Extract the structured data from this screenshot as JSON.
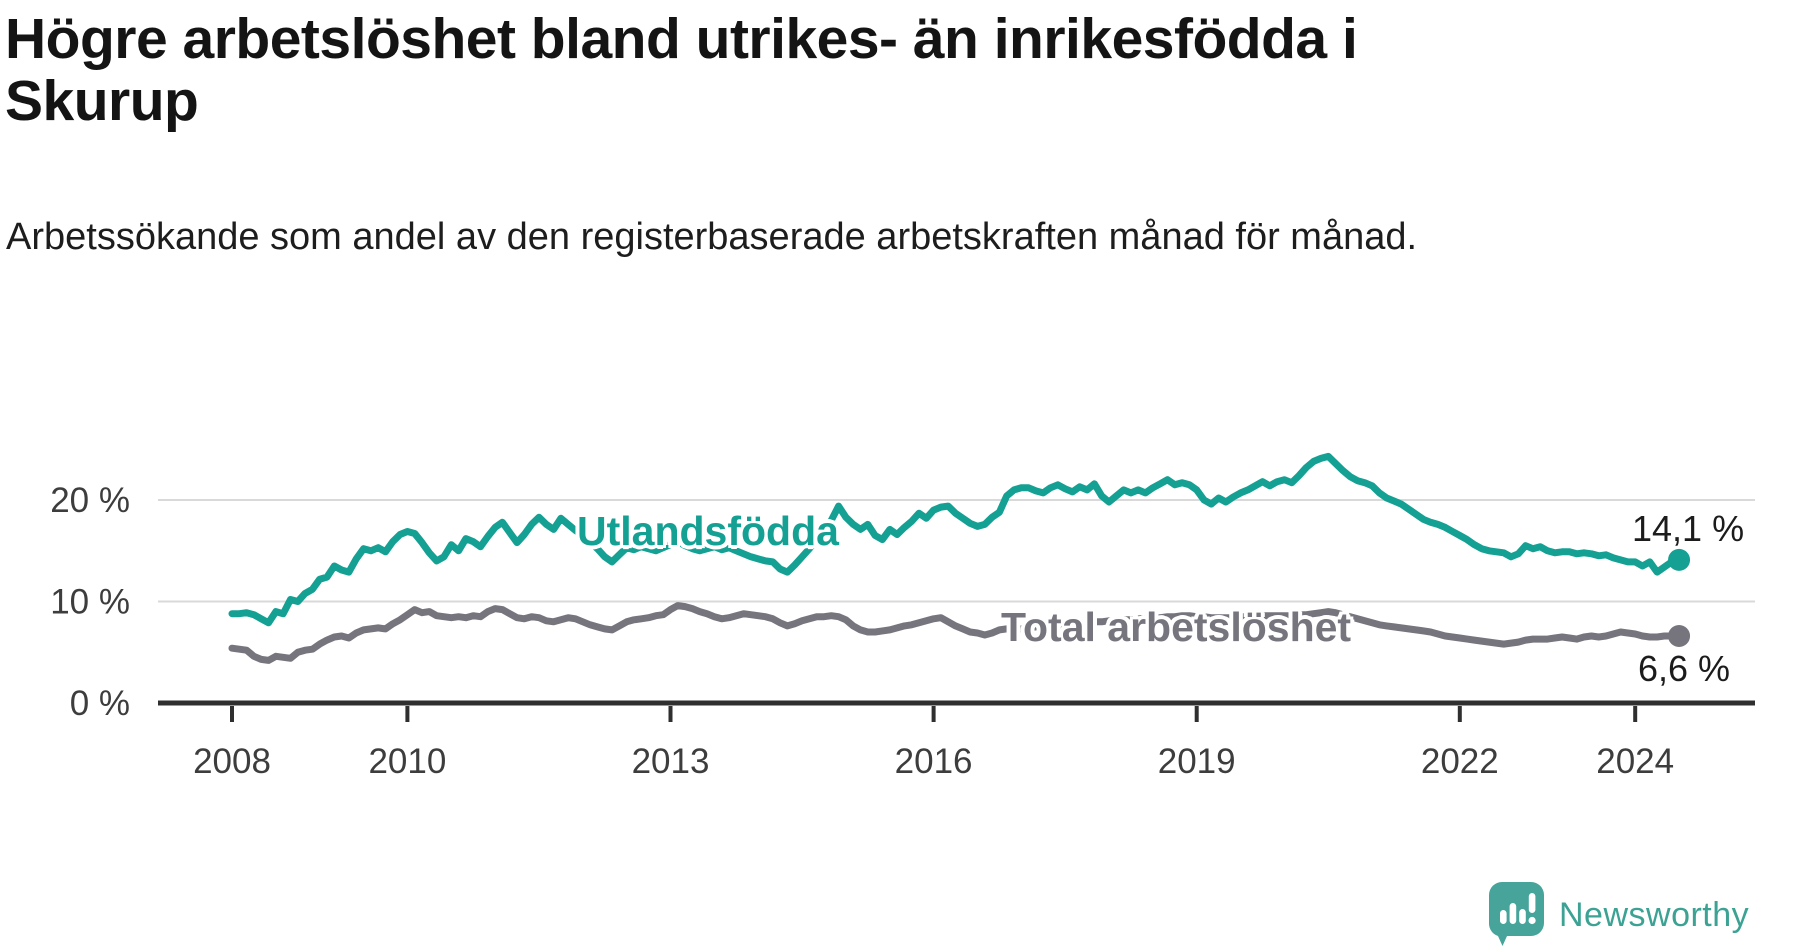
{
  "branding": {
    "logo_text": "Newsworthy",
    "logo_color": "#46a49a"
  },
  "chart_data": {
    "type": "line",
    "title": "Högre arbetslöshet bland utrikes- än inrikesfödda i Skurup",
    "subtitle": "Arbetssökande som andel av den registerbaserade arbetskraften månad för månad.",
    "x_start": "2008-01",
    "x_frequency": "monthly",
    "x_end": "2024-07",
    "ylim": [
      0,
      26
    ],
    "grid": "horizontal",
    "yticks": [
      {
        "value": 0,
        "label": "0 %"
      },
      {
        "value": 10,
        "label": "10 %"
      },
      {
        "value": 20,
        "label": "20 %"
      }
    ],
    "xticks": [
      {
        "year": 2008,
        "label": "2008"
      },
      {
        "year": 2010,
        "label": "2010"
      },
      {
        "year": 2013,
        "label": "2013"
      },
      {
        "year": 2016,
        "label": "2016"
      },
      {
        "year": 2019,
        "label": "2019"
      },
      {
        "year": 2022,
        "label": "2022"
      },
      {
        "year": 2024,
        "label": "2024"
      }
    ],
    "series": [
      {
        "name": "Utlandsfödda",
        "color": "#14a093",
        "end_label": "14,1 %",
        "end_value": 14.1,
        "values": [
          8.8,
          8.8,
          8.9,
          8.7,
          8.3,
          7.9,
          9.0,
          8.8,
          10.2,
          10.0,
          10.8,
          11.2,
          12.2,
          12.4,
          13.5,
          13.1,
          12.9,
          14.2,
          15.2,
          15.0,
          15.3,
          14.9,
          15.9,
          16.6,
          16.9,
          16.7,
          15.8,
          14.8,
          14.0,
          14.4,
          15.6,
          15.0,
          16.2,
          15.9,
          15.4,
          16.4,
          17.3,
          17.8,
          16.8,
          15.8,
          16.6,
          17.6,
          18.3,
          17.6,
          17.1,
          18.2,
          17.6,
          17.0,
          16.5,
          15.8,
          15.2,
          14.4,
          13.9,
          14.6,
          15.3,
          15.1,
          15.4,
          15.2,
          15.0,
          15.3,
          15.6,
          15.9,
          15.5,
          15.2,
          15.0,
          15.2,
          15.4,
          15.1,
          15.3,
          15.0,
          14.7,
          14.4,
          14.2,
          14.0,
          13.9,
          13.2,
          12.9,
          13.6,
          14.4,
          15.2,
          16.1,
          17.0,
          18.0,
          19.4,
          18.3,
          17.6,
          17.1,
          17.6,
          16.5,
          16.1,
          17.1,
          16.6,
          17.3,
          17.9,
          18.7,
          18.2,
          19.0,
          19.3,
          19.4,
          18.7,
          18.2,
          17.7,
          17.4,
          17.6,
          18.3,
          18.8,
          20.4,
          21.0,
          21.2,
          21.2,
          20.9,
          20.7,
          21.2,
          21.5,
          21.1,
          20.8,
          21.3,
          21.0,
          21.6,
          20.4,
          19.8,
          20.4,
          21.0,
          20.7,
          21.0,
          20.7,
          21.2,
          21.6,
          22.0,
          21.5,
          21.7,
          21.5,
          21.0,
          20.0,
          19.6,
          20.2,
          19.8,
          20.3,
          20.7,
          21.0,
          21.4,
          21.8,
          21.4,
          21.8,
          22.0,
          21.7,
          22.4,
          23.2,
          23.8,
          24.1,
          24.3,
          23.6,
          22.9,
          22.3,
          21.9,
          21.7,
          21.4,
          20.7,
          20.2,
          19.9,
          19.6,
          19.1,
          18.6,
          18.1,
          17.8,
          17.6,
          17.3,
          16.9,
          16.5,
          16.1,
          15.6,
          15.2,
          15.0,
          14.9,
          14.8,
          14.4,
          14.7,
          15.5,
          15.2,
          15.4,
          15.0,
          14.8,
          14.9,
          14.9,
          14.7,
          14.8,
          14.7,
          14.5,
          14.6,
          14.3,
          14.1,
          13.9,
          13.9,
          13.5,
          13.9,
          12.9,
          13.4,
          13.9,
          14.1
        ]
      },
      {
        "name": "Total arbetslöshet",
        "color": "#76757d",
        "end_label": "6,6 %",
        "end_value": 6.6,
        "values": [
          5.4,
          5.3,
          5.2,
          4.6,
          4.3,
          4.2,
          4.6,
          4.5,
          4.4,
          5.0,
          5.2,
          5.3,
          5.8,
          6.2,
          6.5,
          6.6,
          6.4,
          6.9,
          7.2,
          7.3,
          7.4,
          7.3,
          7.8,
          8.2,
          8.7,
          9.2,
          8.9,
          9.0,
          8.6,
          8.5,
          8.4,
          8.5,
          8.4,
          8.6,
          8.5,
          9.0,
          9.3,
          9.2,
          8.8,
          8.4,
          8.3,
          8.5,
          8.4,
          8.1,
          8.0,
          8.2,
          8.4,
          8.3,
          8.0,
          7.7,
          7.5,
          7.3,
          7.2,
          7.6,
          8.0,
          8.2,
          8.3,
          8.4,
          8.6,
          8.7,
          9.2,
          9.6,
          9.5,
          9.3,
          9.0,
          8.8,
          8.5,
          8.3,
          8.4,
          8.6,
          8.8,
          8.7,
          8.6,
          8.5,
          8.3,
          7.9,
          7.6,
          7.8,
          8.1,
          8.3,
          8.5,
          8.5,
          8.6,
          8.5,
          8.2,
          7.6,
          7.2,
          7.0,
          7.0,
          7.1,
          7.2,
          7.4,
          7.6,
          7.7,
          7.9,
          8.1,
          8.3,
          8.4,
          8.0,
          7.6,
          7.3,
          7.0,
          6.9,
          6.7,
          6.9,
          7.2,
          7.3,
          7.3,
          7.3,
          7.4,
          7.5,
          7.5,
          7.6,
          7.6,
          7.7,
          7.7,
          7.8,
          7.9,
          8.0,
          8.0,
          8.1,
          8.1,
          8.2,
          8.2,
          8.3,
          8.3,
          8.4,
          8.4,
          8.5,
          8.5,
          8.6,
          8.6,
          8.5,
          8.5,
          8.4,
          8.4,
          8.4,
          8.4,
          8.5,
          8.5,
          8.5,
          8.6,
          8.6,
          8.6,
          8.6,
          8.6,
          8.7,
          8.7,
          8.8,
          8.9,
          9.0,
          8.9,
          8.7,
          8.5,
          8.3,
          8.1,
          7.9,
          7.7,
          7.6,
          7.5,
          7.4,
          7.3,
          7.2,
          7.1,
          7.0,
          6.8,
          6.6,
          6.5,
          6.4,
          6.3,
          6.2,
          6.1,
          6.0,
          5.9,
          5.8,
          5.9,
          6.0,
          6.2,
          6.3,
          6.3,
          6.3,
          6.4,
          6.5,
          6.4,
          6.3,
          6.5,
          6.6,
          6.5,
          6.6,
          6.8,
          7.0,
          6.9,
          6.8,
          6.6,
          6.5,
          6.5,
          6.6,
          6.6,
          6.6
        ]
      }
    ]
  }
}
